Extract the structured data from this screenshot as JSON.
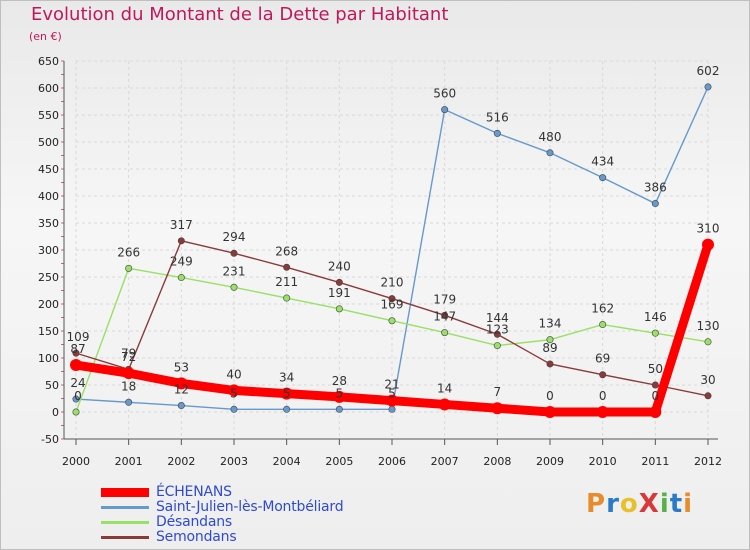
{
  "header": {
    "title": "Evolution du Montant de la Dette par Habitant",
    "subtitle": "(en €)"
  },
  "logo": {
    "text": "ProXiti",
    "colors": [
      "#e88b2a",
      "#2a7ac8",
      "#e8c02a",
      "#d83838",
      "#58b04a",
      "#2a7ac8",
      "#e88b2a"
    ]
  },
  "chart_data": {
    "type": "line",
    "title": "Evolution du Montant de la Dette par Habitant",
    "subtitle": "(en €)",
    "xlabel": "",
    "ylabel": "",
    "x": [
      "2000",
      "2001",
      "2002",
      "2003",
      "2004",
      "2005",
      "2006",
      "2007",
      "2008",
      "2009",
      "2010",
      "2011",
      "2012"
    ],
    "ylim": [
      -50,
      650
    ],
    "yticks": [
      -50,
      0,
      50,
      100,
      150,
      200,
      250,
      300,
      350,
      400,
      450,
      500,
      550,
      600,
      650
    ],
    "grid": true,
    "legend_position": "bottom-left",
    "series": [
      {
        "name": "ÉCHENANS",
        "color": "#ff0000",
        "values": [
          87,
          72,
          53,
          40,
          34,
          28,
          21,
          14,
          7,
          0,
          0,
          0,
          310
        ],
        "labels": [
          "87",
          "72",
          "53",
          "40",
          "34",
          "28",
          "21",
          "14",
          "7",
          "0",
          "0",
          "0",
          "310"
        ]
      },
      {
        "name": "Saint-Julien-lès-Montbéliard",
        "color": "#6699cc",
        "values": [
          24,
          18,
          12,
          5,
          5,
          5,
          5,
          560,
          516,
          480,
          434,
          386,
          602
        ],
        "labels": [
          "24",
          "18",
          "12",
          "5",
          "5",
          "5",
          "5",
          "560",
          "516",
          "480",
          "434",
          "386",
          "602"
        ]
      },
      {
        "name": "Désandans",
        "color": "#99e066",
        "values": [
          0,
          266,
          249,
          231,
          211,
          191,
          169,
          147,
          123,
          134,
          162,
          146,
          130
        ],
        "labels": [
          "0",
          "266",
          "249",
          "231",
          "211",
          "191",
          "169",
          "147",
          "123",
          "134",
          "162",
          "146",
          "130"
        ]
      },
      {
        "name": "Semondans",
        "color": "#8b3a3a",
        "values": [
          109,
          79,
          317,
          294,
          268,
          240,
          210,
          179,
          144,
          89,
          69,
          50,
          30
        ],
        "labels": [
          "109",
          "79",
          "317",
          "294",
          "268",
          "240",
          "210",
          "179",
          "144",
          "89",
          "69",
          "50",
          "30"
        ]
      }
    ]
  }
}
